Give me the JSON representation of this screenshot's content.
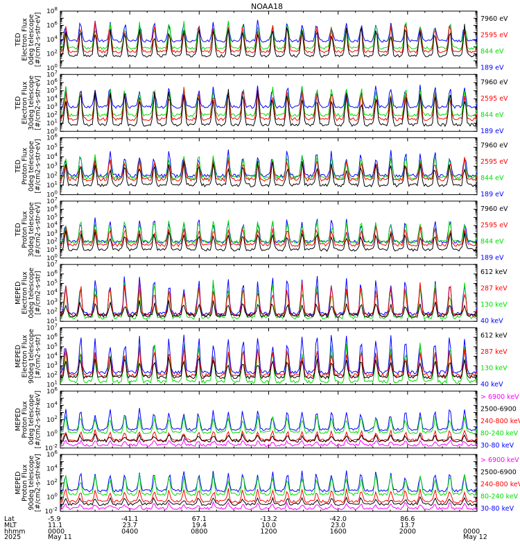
{
  "chart_data": {
    "type": "line",
    "title": "NOAA18",
    "x_time_range_hours": [
      0,
      24
    ],
    "ylog": true,
    "grid": false,
    "legend_placement": "right",
    "panels": [
      {
        "ylabel": [
          "TED",
          "Electron Flux",
          "0deg telescope",
          "[#/cm2-s-str-eV]"
        ],
        "ylim_exp": [
          0,
          8
        ],
        "tick_exps": [
          0,
          2,
          4,
          6,
          8
        ],
        "series": [
          {
            "name": "7960 eV",
            "color": "#000000",
            "base_exp": 1.7,
            "amp_exp": 4.5
          },
          {
            "name": "2595 eV",
            "color": "#ff0000",
            "base_exp": 2.3,
            "amp_exp": 4.2
          },
          {
            "name": "844 eV",
            "color": "#00dd00",
            "base_exp": 2.8,
            "amp_exp": 4.0
          },
          {
            "name": "189 eV",
            "color": "#0000ff",
            "base_exp": 3.8,
            "amp_exp": 3.0
          }
        ]
      },
      {
        "ylabel": [
          "TED",
          "Electron Flux",
          "30deg telescope",
          "[#/cm2-s-str-eV]"
        ],
        "ylim_exp": [
          0,
          7
        ],
        "tick_exps": [
          0,
          1,
          2,
          3,
          4,
          5,
          6,
          7
        ],
        "series": [
          {
            "name": "7960 eV",
            "color": "#000000",
            "base_exp": 0.8,
            "amp_exp": 4.5
          },
          {
            "name": "2595 eV",
            "color": "#ff0000",
            "base_exp": 1.5,
            "amp_exp": 4.0
          },
          {
            "name": "844 eV",
            "color": "#00dd00",
            "base_exp": 2.0,
            "amp_exp": 3.8
          },
          {
            "name": "189 eV",
            "color": "#0000ff",
            "base_exp": 3.0,
            "amp_exp": 2.8
          }
        ]
      },
      {
        "ylabel": [
          "TED",
          "Proton Flux",
          "0deg telescope",
          "[#/cm2-s-str-eV]"
        ],
        "ylim_exp": [
          0,
          6
        ],
        "tick_exps": [
          0,
          1,
          2,
          3,
          4,
          5,
          6
        ],
        "series": [
          {
            "name": "7960 eV",
            "color": "#000000",
            "base_exp": 1.0,
            "amp_exp": 2.5
          },
          {
            "name": "2595 eV",
            "color": "#ff0000",
            "base_exp": 1.6,
            "amp_exp": 2.3
          },
          {
            "name": "844 eV",
            "color": "#00dd00",
            "base_exp": 1.8,
            "amp_exp": 2.6
          },
          {
            "name": "189 eV",
            "color": "#0000ff",
            "base_exp": 2.0,
            "amp_exp": 2.8
          }
        ]
      },
      {
        "ylabel": [
          "TED",
          "Proton Flux",
          "30deg telescope",
          "[#/cm2-s-str-eV]"
        ],
        "ylim_exp": [
          0,
          7
        ],
        "tick_exps": [
          0,
          1,
          2,
          3,
          4,
          5,
          6,
          7
        ],
        "series": [
          {
            "name": "7960 eV",
            "color": "#000000",
            "base_exp": 1.0,
            "amp_exp": 2.5
          },
          {
            "name": "2595 eV",
            "color": "#ff0000",
            "base_exp": 1.6,
            "amp_exp": 2.4
          },
          {
            "name": "844 eV",
            "color": "#00dd00",
            "base_exp": 2.0,
            "amp_exp": 2.8
          },
          {
            "name": "189 eV",
            "color": "#0000ff",
            "base_exp": 2.0,
            "amp_exp": 3.0
          }
        ]
      },
      {
        "ylabel": [
          "MEPED",
          "Electron Flux",
          "0deg telescope",
          "[#/cm2-s-str]"
        ],
        "ylim_exp": [
          1,
          7
        ],
        "tick_exps": [
          1,
          2,
          3,
          4,
          5,
          6,
          7
        ],
        "series": [
          {
            "name": "612 keV",
            "color": "#000000",
            "base_exp": 1.6,
            "amp_exp": 1.6
          },
          {
            "name": "287 keV",
            "color": "#ff0000",
            "base_exp": 1.7,
            "amp_exp": 3.5
          },
          {
            "name": "130 keV",
            "color": "#00dd00",
            "base_exp": 1.4,
            "amp_exp": 4.0
          },
          {
            "name": "40 keV",
            "color": "#0000ff",
            "base_exp": 1.8,
            "amp_exp": 4.2
          }
        ]
      },
      {
        "ylabel": [
          "MEPED",
          "Electron Flux",
          "90deg telescope",
          "[#/cm2-s-str]"
        ],
        "ylim_exp": [
          1,
          7
        ],
        "tick_exps": [
          1,
          2,
          3,
          4,
          5,
          6,
          7
        ],
        "series": [
          {
            "name": "612 keV",
            "color": "#000000",
            "base_exp": 1.8,
            "amp_exp": 2.2
          },
          {
            "name": "287 keV",
            "color": "#ff0000",
            "base_exp": 2.0,
            "amp_exp": 3.0
          },
          {
            "name": "130 keV",
            "color": "#00dd00",
            "base_exp": 1.3,
            "amp_exp": 4.2
          },
          {
            "name": "40 keV",
            "color": "#0000ff",
            "base_exp": 2.3,
            "amp_exp": 4.2
          }
        ]
      },
      {
        "ylabel": [
          "MEPED",
          "Proton Flux",
          "0deg telescope",
          "[#/cm2-s-str-keV]"
        ],
        "ylim_exp": [
          -2,
          6
        ],
        "tick_exps": [
          -2,
          0,
          2,
          4,
          6
        ],
        "series": [
          {
            "name": "> 6900 keV",
            "color": "#ff00ff",
            "base_exp": -1.6,
            "amp_exp": 0.8
          },
          {
            "name": "2500-6900",
            "color": "#000000",
            "base_exp": -1.0,
            "amp_exp": 1.0
          },
          {
            "name": "240-800 keV",
            "color": "#ff0000",
            "base_exp": -0.9,
            "amp_exp": 1.5
          },
          {
            "name": "80-240 keV",
            "color": "#00dd00",
            "base_exp": 0.2,
            "amp_exp": 2.5
          },
          {
            "name": "30-80 keV",
            "color": "#0000ff",
            "base_exp": 0.6,
            "amp_exp": 3.0
          }
        ]
      },
      {
        "ylabel": [
          "MEPED",
          "Proton Flux",
          "90deg telescope",
          "[#/cm2-s-str-keV]"
        ],
        "ylim_exp": [
          -2,
          6
        ],
        "tick_exps": [
          -2,
          0,
          2,
          4,
          6
        ],
        "series": [
          {
            "name": "> 6900 keV",
            "color": "#ff00ff",
            "base_exp": -1.6,
            "amp_exp": 0.8
          },
          {
            "name": "2500-6900",
            "color": "#000000",
            "base_exp": -1.0,
            "amp_exp": 1.0
          },
          {
            "name": "240-800 keV",
            "color": "#ff0000",
            "base_exp": -0.6,
            "amp_exp": 1.8
          },
          {
            "name": "80-240 keV",
            "color": "#00dd00",
            "base_exp": 0.4,
            "amp_exp": 3.0
          },
          {
            "name": "30-80 keV",
            "color": "#0000ff",
            "base_exp": 0.9,
            "amp_exp": 3.0
          }
        ]
      }
    ],
    "footer": {
      "row_labels": [
        "Lat",
        "MLT",
        "hhmm",
        "2025"
      ],
      "columns": [
        {
          "hour": 0,
          "values": [
            "-5.9",
            "11.1",
            "0000",
            "May 11"
          ]
        },
        {
          "hour": 4,
          "values": [
            "-41.1",
            "23.7",
            "0400",
            ""
          ]
        },
        {
          "hour": 8,
          "values": [
            "67.1",
            "19.4",
            "0800",
            ""
          ]
        },
        {
          "hour": 12,
          "values": [
            "-13.2",
            "10.0",
            "1200",
            ""
          ]
        },
        {
          "hour": 16,
          "values": [
            "-42.0",
            "23.0",
            "1600",
            ""
          ]
        },
        {
          "hour": 20,
          "values": [
            "86.6",
            "13.7",
            "2000",
            ""
          ]
        },
        {
          "hour": 24,
          "values": [
            "",
            "",
            "0000",
            "May 12"
          ]
        }
      ]
    }
  }
}
